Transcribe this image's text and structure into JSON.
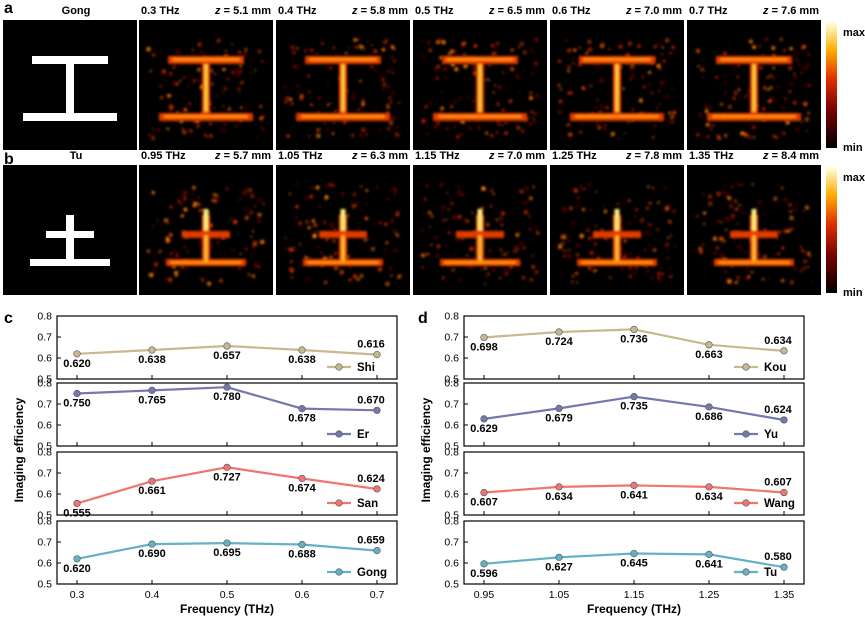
{
  "figure": {
    "panel_labels": [
      "a",
      "b",
      "c",
      "d"
    ],
    "colorbar": {
      "max_label": "max",
      "min_label": "min"
    },
    "rows": [
      {
        "label": "a",
        "char_label": "Gong",
        "char": "工",
        "tiles": [
          {
            "freq": "0.3 THz",
            "z_prefix": "z",
            "z_value": " = 5.1 mm"
          },
          {
            "freq": "0.4 THz",
            "z_prefix": "z",
            "z_value": " = 5.8 mm"
          },
          {
            "freq": "0.5 THz",
            "z_prefix": "z",
            "z_value": " = 6.5 mm"
          },
          {
            "freq": "0.6 THz",
            "z_prefix": "z",
            "z_value": " = 7.0 mm"
          },
          {
            "freq": "0.7 THz",
            "z_prefix": "z",
            "z_value": " = 7.6 mm"
          }
        ]
      },
      {
        "label": "b",
        "char_label": "Tu",
        "char": "土",
        "tiles": [
          {
            "freq": "0.95 THz",
            "z_prefix": "z",
            "z_value": " = 5.7 mm"
          },
          {
            "freq": "1.05 THz",
            "z_prefix": "z",
            "z_value": " = 6.3 mm"
          },
          {
            "freq": "1.15 THz",
            "z_prefix": "z",
            "z_value": " = 7.0 mm"
          },
          {
            "freq": "1.25 THz",
            "z_prefix": "z",
            "z_value": " = 7.8 mm"
          },
          {
            "freq": "1.35 THz",
            "z_prefix": "z",
            "z_value": " = 8.4 mm"
          }
        ]
      }
    ]
  },
  "colors": {
    "Shi": "#c8b88f",
    "Er": "#7478ad",
    "San": "#ee7572",
    "Gong": "#63b1c4",
    "Kou": "#c8b88f",
    "Yu": "#7478ad",
    "Wang": "#ee7572",
    "Tu": "#63b1c4"
  },
  "chart_data": [
    {
      "panel": "c",
      "type": "line",
      "xlabel": "Frequency (THz)",
      "ylabel": "Imaging efficiency",
      "categories": [
        "0.3",
        "0.4",
        "0.5",
        "0.6",
        "0.7"
      ],
      "ylim": [
        0.5,
        0.8
      ],
      "yticks": [
        "0.5",
        "0.6",
        "0.7",
        "0.8"
      ],
      "series": [
        {
          "name": "Shi",
          "values": [
            0.62,
            0.638,
            0.657,
            0.638,
            0.616
          ],
          "labels": [
            "0.620",
            "0.638",
            "0.657",
            "0.638",
            "0.616"
          ]
        },
        {
          "name": "Er",
          "values": [
            0.75,
            0.765,
            0.78,
            0.678,
            0.67
          ],
          "labels": [
            "0.750",
            "0.765",
            "0.780",
            "0.678",
            "0.670"
          ]
        },
        {
          "name": "San",
          "values": [
            0.555,
            0.661,
            0.727,
            0.674,
            0.624
          ],
          "labels": [
            "0.555",
            "0.661",
            "0.727",
            "0.674",
            "0.624"
          ]
        },
        {
          "name": "Gong",
          "values": [
            0.62,
            0.69,
            0.695,
            0.688,
            0.659
          ],
          "labels": [
            "0.620",
            "0.690",
            "0.695",
            "0.688",
            "0.659"
          ]
        }
      ]
    },
    {
      "panel": "d",
      "type": "line",
      "xlabel": "Frequency (THz)",
      "ylabel": "Imaging efficiency",
      "categories": [
        "0.95",
        "1.05",
        "1.15",
        "1.25",
        "1.35"
      ],
      "ylim": [
        0.5,
        0.8
      ],
      "yticks": [
        "0.5",
        "0.6",
        "0.7",
        "0.8"
      ],
      "series": [
        {
          "name": "Kou",
          "values": [
            0.698,
            0.724,
            0.736,
            0.663,
            0.634
          ],
          "labels": [
            "0.698",
            "0.724",
            "0.736",
            "0.663",
            "0.634"
          ]
        },
        {
          "name": "Yu",
          "values": [
            0.629,
            0.679,
            0.735,
            0.686,
            0.624
          ],
          "labels": [
            "0.629",
            "0.679",
            "0.735",
            "0.686",
            "0.624"
          ]
        },
        {
          "name": "Wang",
          "values": [
            0.607,
            0.634,
            0.641,
            0.634,
            0.607
          ],
          "labels": [
            "0.607",
            "0.634",
            "0.641",
            "0.634",
            "0.607"
          ]
        },
        {
          "name": "Tu",
          "values": [
            0.596,
            0.627,
            0.645,
            0.641,
            0.58
          ],
          "labels": [
            "0.596",
            "0.627",
            "0.645",
            "0.641",
            "0.580"
          ]
        }
      ]
    }
  ]
}
